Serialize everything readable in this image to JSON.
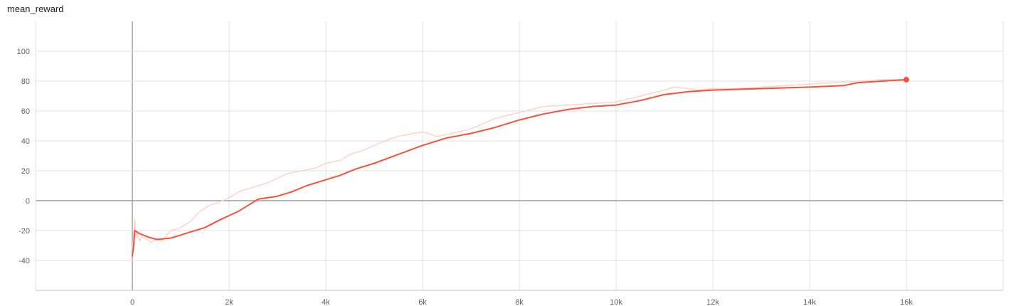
{
  "chart_data": {
    "type": "line",
    "title": "mean_reward",
    "xlabel": "",
    "ylabel": "",
    "xlim": [
      -2000,
      18000
    ],
    "ylim": [
      -60,
      120
    ],
    "x_ticks": [
      0,
      2000,
      4000,
      6000,
      8000,
      10000,
      12000,
      14000,
      16000
    ],
    "x_tick_labels": [
      "0",
      "2k",
      "4k",
      "6k",
      "8k",
      "10k",
      "12k",
      "14k",
      "16k"
    ],
    "y_ticks": [
      -40,
      -20,
      0,
      20,
      40,
      60,
      80,
      100
    ],
    "y_tick_labels": [
      "-40",
      "-20",
      "0",
      "20",
      "40",
      "60",
      "80",
      "100"
    ],
    "grid": true,
    "colors": {
      "smoothed": "#f4523b",
      "raw": "#fcd4cc",
      "grid": "#e0e0e0",
      "zero_axis": "#9e9e9e"
    },
    "series": [
      {
        "role": "raw",
        "x": [
          0,
          50,
          80,
          100,
          150,
          200,
          300,
          400,
          500,
          600,
          800,
          1000,
          1200,
          1400,
          1600,
          1800,
          2000,
          2200,
          2500,
          2800,
          3000,
          3200,
          3500,
          3800,
          4000,
          4300,
          4500,
          4800,
          5000,
          5300,
          5500,
          5800,
          6000,
          6300,
          6600,
          7000,
          7500,
          8000,
          8500,
          9000,
          9500,
          10000,
          10500,
          11000,
          11200,
          11500,
          11700,
          12000,
          12500,
          13000,
          13500,
          14000,
          14500,
          15000,
          15500,
          16000
        ],
        "y": [
          -36,
          -12,
          -25,
          -22,
          -27,
          -24,
          -26,
          -28,
          -25,
          -27,
          -20,
          -18,
          -14,
          -7,
          -3,
          -1,
          2,
          6,
          9,
          12,
          15,
          18,
          20,
          22,
          25,
          27,
          31,
          34,
          37,
          41,
          43,
          45,
          46,
          43,
          45,
          48,
          55,
          59,
          63,
          64,
          65,
          66,
          70,
          74,
          76,
          75,
          74,
          75,
          75,
          76,
          77,
          78,
          79,
          80,
          81,
          81
        ]
      },
      {
        "role": "smoothed",
        "x": [
          0,
          30,
          50,
          150,
          300,
          500,
          800,
          1000,
          1200,
          1500,
          1800,
          2000,
          2200,
          2400,
          2600,
          3000,
          3300,
          3600,
          4000,
          4300,
          4600,
          5000,
          5500,
          6000,
          6500,
          7000,
          7500,
          8000,
          8500,
          9000,
          9500,
          10000,
          10500,
          11000,
          11500,
          12000,
          13000,
          14000,
          14700,
          15000,
          15500,
          16000
        ],
        "y": [
          -37,
          -30,
          -20,
          -22,
          -24,
          -26,
          -25,
          -23,
          -21,
          -18,
          -13,
          -10,
          -7,
          -3,
          1,
          3,
          6,
          10,
          14,
          17,
          21,
          25,
          31,
          37,
          42,
          45,
          49,
          54,
          58,
          61,
          63,
          64,
          67,
          71,
          73,
          74,
          75,
          76,
          77,
          79,
          80,
          81
        ]
      }
    ]
  }
}
